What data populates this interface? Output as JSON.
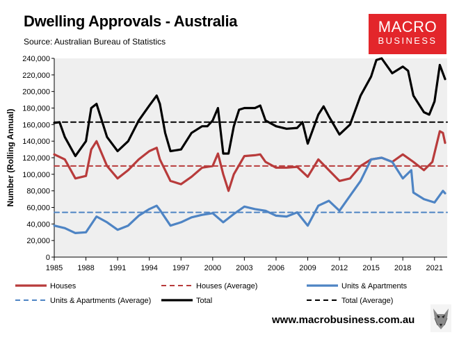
{
  "header": {
    "title": "Dwelling Approvals - Australia",
    "source": "Source: Australian Bureau of Statistics"
  },
  "logo": {
    "line1": "MACRO",
    "line2": "BUSINESS"
  },
  "footer": {
    "url": "www.macrobusiness.com.au"
  },
  "colors": {
    "houses": "#b83b3b",
    "units": "#4e84c4",
    "total": "#000000",
    "plot_bg": "#efefef",
    "brand": "#e3262b"
  },
  "chart_data": {
    "type": "line",
    "title": "Dwelling Approvals - Australia",
    "ylabel": "Number (Rolling Annual)",
    "xlabel": "",
    "xlim": [
      1985,
      2022.2
    ],
    "ylim": [
      0,
      240000
    ],
    "ytick_labels": [
      "0",
      "20,000",
      "40,000",
      "60,000",
      "80,000",
      "100,000",
      "120,000",
      "140,000",
      "160,000",
      "180,000",
      "200,000",
      "220,000",
      "240,000"
    ],
    "xtick_labels": [
      "1985",
      "1988",
      "1991",
      "1994",
      "1997",
      "2000",
      "2003",
      "2006",
      "2009",
      "2012",
      "2015",
      "2018",
      "2021"
    ],
    "grid": false,
    "legend_position": "bottom",
    "series": [
      {
        "name": "Houses",
        "style": "solid",
        "color_key": "houses",
        "x": [
          1985,
          1986,
          1987,
          1988,
          1988.5,
          1989,
          1990,
          1991,
          1992,
          1993,
          1994,
          1994.7,
          1995,
          1996,
          1997,
          1998,
          1999,
          2000,
          2000.5,
          2001,
          2001.5,
          2002,
          2003,
          2004,
          2004.5,
          2005,
          2006,
          2007,
          2008,
          2009,
          2010,
          2011,
          2012,
          2013,
          2014,
          2015,
          2016,
          2017,
          2018,
          2019,
          2020,
          2020.8,
          2021.5,
          2021.8,
          2022
        ],
        "y": [
          124000,
          118000,
          95000,
          98000,
          130000,
          140000,
          110000,
          95000,
          105000,
          118000,
          128000,
          132000,
          118000,
          92000,
          88000,
          97000,
          108000,
          110000,
          125000,
          100000,
          80000,
          100000,
          122000,
          123000,
          124000,
          115000,
          108000,
          108000,
          109000,
          97000,
          118000,
          105000,
          92000,
          95000,
          110000,
          118000,
          120000,
          115000,
          124000,
          115000,
          105000,
          115000,
          152000,
          150000,
          138000
        ]
      },
      {
        "name": "Houses (Average)",
        "style": "dashed",
        "color_key": "houses",
        "x": [
          1985,
          2022.2
        ],
        "y": [
          110000,
          110000
        ]
      },
      {
        "name": "Units & Apartments",
        "style": "solid",
        "color_key": "units",
        "x": [
          1985,
          1986,
          1987,
          1988,
          1989,
          1990,
          1991,
          1992,
          1993,
          1994,
          1994.7,
          1995,
          1996,
          1997,
          1998,
          1999,
          2000,
          2001,
          2002,
          2003,
          2004,
          2005,
          2006,
          2007,
          2008,
          2009,
          2010,
          2011,
          2012,
          2013,
          2014,
          2015,
          2016,
          2017,
          2018,
          2018.8,
          2019,
          2020,
          2021,
          2021.8,
          2022
        ],
        "y": [
          38000,
          35000,
          29000,
          30000,
          49000,
          42000,
          33000,
          38000,
          50000,
          58000,
          62000,
          57000,
          38000,
          42000,
          48000,
          51000,
          53000,
          42000,
          52000,
          61000,
          58000,
          56000,
          50000,
          49000,
          54000,
          38000,
          62000,
          68000,
          56000,
          74000,
          92000,
          118000,
          120000,
          115000,
          95000,
          105000,
          78000,
          70000,
          66000,
          80000,
          77000
        ]
      },
      {
        "name": "Units & Apartments (Average)",
        "style": "dashed",
        "color_key": "units",
        "x": [
          1985,
          2022.2
        ],
        "y": [
          54000,
          54000
        ]
      },
      {
        "name": "Total",
        "style": "solid",
        "color_key": "total",
        "x": [
          1985,
          1985.5,
          1986,
          1987,
          1988,
          1988.5,
          1989,
          1990,
          1991,
          1992,
          1993,
          1994,
          1994.7,
          1995,
          1995.5,
          1996,
          1997,
          1998,
          1999,
          1999.5,
          2000,
          2000.5,
          2001,
          2001.5,
          2002,
          2002.5,
          2003,
          2004,
          2004.5,
          2005,
          2006,
          2007,
          2008,
          2008.5,
          2009,
          2010,
          2010.5,
          2011,
          2012,
          2013,
          2014,
          2015,
          2015.5,
          2016,
          2017,
          2018,
          2018.5,
          2019,
          2020,
          2020.5,
          2021,
          2021.5,
          2022
        ],
        "y": [
          162000,
          163000,
          145000,
          122000,
          140000,
          180000,
          185000,
          145000,
          128000,
          140000,
          165000,
          183000,
          195000,
          185000,
          150000,
          128000,
          130000,
          150000,
          158000,
          158000,
          165000,
          180000,
          125000,
          125000,
          158000,
          178000,
          180000,
          180000,
          183000,
          165000,
          158000,
          155000,
          156000,
          163000,
          137000,
          172000,
          182000,
          170000,
          148000,
          160000,
          195000,
          218000,
          238000,
          240000,
          222000,
          230000,
          225000,
          195000,
          175000,
          172000,
          188000,
          232000,
          215000
        ]
      },
      {
        "name": "Total (Average)",
        "style": "dashed",
        "color_key": "total",
        "x": [
          1985,
          2022.2
        ],
        "y": [
          163000,
          163000
        ]
      }
    ]
  }
}
